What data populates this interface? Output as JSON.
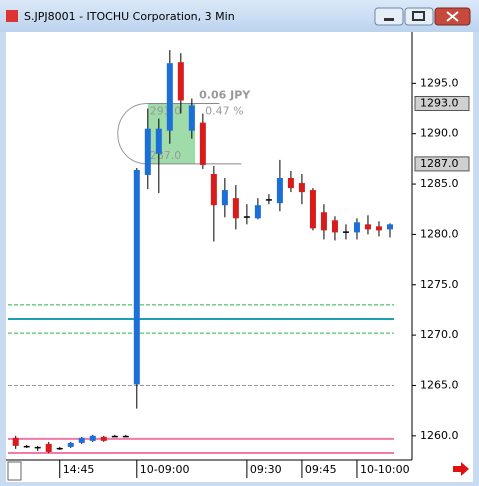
{
  "window_title": "S.JPJ8001 - ITOCHU Corporation, 3 Min",
  "chart_data": {
    "type": "candlestick",
    "x": [
      0,
      1,
      2,
      3,
      4,
      5,
      6,
      7,
      8,
      9,
      10,
      11,
      12,
      13,
      14,
      15,
      16,
      17,
      18,
      19,
      20,
      21,
      22,
      23,
      24,
      25,
      26,
      27,
      28,
      29,
      30,
      31,
      32,
      33,
      34
    ],
    "open": [
      1259.8,
      1259.0,
      1258.9,
      1259.2,
      1258.8,
      1258.9,
      1259.3,
      1259.5,
      1259.9,
      1260.0,
      1260.0,
      1265.1,
      1285.9,
      1288.0,
      1290.3,
      1297.1,
      1290.3,
      1291.1,
      1286.0,
      1282.9,
      1283.6,
      1281.8,
      1281.6,
      1283.5,
      1283.1,
      1285.6,
      1285.1,
      1284.4,
      1282.2,
      1281.4,
      1280.3,
      1280.2,
      1281.0,
      1280.8,
      1280.5
    ],
    "high": [
      1260.0,
      1259.1,
      1259.0,
      1259.4,
      1258.9,
      1259.4,
      1259.9,
      1260.1,
      1260.0,
      1260.1,
      1260.1,
      1286.6,
      1292.5,
      1291.5,
      1298.3,
      1298.0,
      1293.5,
      1292.0,
      1286.8,
      1285.6,
      1284.9,
      1283.0,
      1283.6,
      1284.0,
      1287.4,
      1286.3,
      1286.0,
      1284.6,
      1283.0,
      1281.8,
      1281.0,
      1281.6,
      1281.9,
      1281.3,
      1281.1
    ],
    "low": [
      1258.7,
      1258.8,
      1258.5,
      1258.3,
      1258.6,
      1258.8,
      1259.2,
      1259.4,
      1259.4,
      1259.9,
      1259.9,
      1262.7,
      1284.5,
      1284.1,
      1289.0,
      1292.0,
      1289.5,
      1286.5,
      1279.3,
      1281.7,
      1280.5,
      1281.0,
      1281.5,
      1283.0,
      1282.3,
      1284.2,
      1283.0,
      1280.4,
      1279.5,
      1279.4,
      1279.5,
      1279.5,
      1280.0,
      1279.8,
      1279.7
    ],
    "close": [
      1259.0,
      1259.0,
      1258.9,
      1258.4,
      1258.8,
      1259.3,
      1259.8,
      1260.0,
      1259.5,
      1260.0,
      1260.0,
      1286.4,
      1290.5,
      1290.5,
      1297.0,
      1293.3,
      1292.8,
      1286.9,
      1282.9,
      1284.4,
      1281.6,
      1281.8,
      1282.9,
      1283.5,
      1285.6,
      1284.6,
      1284.2,
      1280.6,
      1280.4,
      1280.2,
      1280.3,
      1281.2,
      1280.5,
      1280.4,
      1281.0
    ],
    "up_color": "#1c6fd8",
    "down_color": "#d81c1c",
    "xlim": [
      -0.7,
      36
    ],
    "xticks": [
      {
        "value": 4,
        "label": "14:45"
      },
      {
        "value": 11,
        "label": "10-09:00"
      },
      {
        "value": 21,
        "label": "09:30"
      },
      {
        "value": 26,
        "label": "09:45"
      },
      {
        "value": 31,
        "label": "10-10:00"
      }
    ],
    "ylim": [
      1257.6,
      1299.8
    ],
    "yticks": [
      {
        "value": 1260,
        "label": "1260.0"
      },
      {
        "value": 1265,
        "label": "1265.0"
      },
      {
        "value": 1270,
        "label": "1270.0"
      },
      {
        "value": 1275,
        "label": "1275.0"
      },
      {
        "value": 1280,
        "label": "1280.0"
      },
      {
        "value": 1285,
        "label": "1285.0"
      },
      {
        "value": 1290,
        "label": "1290.0"
      },
      {
        "value": 1295,
        "label": "1295.0"
      }
    ],
    "price_markers": [
      {
        "value": 1293.0,
        "label": "1293.0"
      },
      {
        "value": 1287.0,
        "label": "1287.0"
      }
    ],
    "levels": [
      {
        "value": 1273.0,
        "color": "#2fb34a",
        "style": "dashed"
      },
      {
        "value": 1270.2,
        "color": "#2fb34a",
        "style": "dashed"
      },
      {
        "value": 1271.6,
        "color": "#1a9fb5",
        "style": "solid"
      },
      {
        "value": 1265.0,
        "color": "#999999",
        "style": "dashed"
      },
      {
        "value": 1259.7,
        "color": "#f07aa8",
        "style": "solid"
      },
      {
        "value": 1258.3,
        "color": "#f07aa8",
        "style": "solid"
      }
    ],
    "annotation": {
      "change": "0.06 JPY",
      "upper": "293.0",
      "percent": "0.47 %",
      "lower": "287.0"
    }
  }
}
